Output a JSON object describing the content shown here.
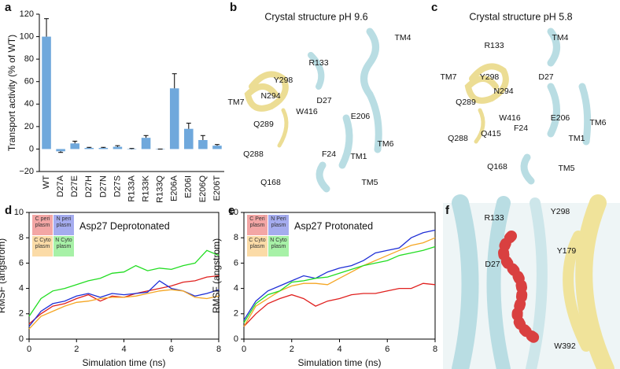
{
  "chart_data": [
    {
      "type": "bar",
      "label": "a",
      "ylabel": "Transport activity (% of WT)",
      "categories": [
        "WT",
        "D27A",
        "D27E",
        "D27H",
        "D27N",
        "D27S",
        "R133A",
        "R133K",
        "R133Q",
        "E206A",
        "E206I",
        "E206Q",
        "E206T"
      ],
      "values": [
        100,
        -2,
        5,
        1,
        1,
        2,
        0,
        10,
        0,
        54,
        18,
        8,
        3
      ],
      "errors": [
        16,
        1,
        2,
        0.5,
        0.5,
        1,
        0.5,
        2,
        0,
        13,
        5,
        4,
        1
      ],
      "color": "#6fa8dc",
      "ylim": [
        -20,
        120
      ],
      "yticks": [
        {
          "value": -20,
          "label": "−20"
        },
        0,
        20,
        40,
        60,
        80,
        100,
        120
      ]
    },
    {
      "type": "line",
      "label": "d",
      "title": "Asp27 Deprotonated",
      "xlabel": "Simulation time (ns)",
      "ylabel": "RMSF (angstrom)",
      "x": [
        0,
        0.5,
        1,
        1.5,
        2,
        2.5,
        3,
        3.5,
        4,
        4.5,
        5,
        5.5,
        6,
        6.5,
        7,
        7.5,
        8
      ],
      "xlim": [
        0,
        8
      ],
      "xticks": [
        0,
        2,
        4,
        6,
        8
      ],
      "ylim": [
        0,
        10
      ],
      "yticks": [
        0,
        2,
        4,
        6,
        8,
        10
      ],
      "series": [
        {
          "name": "C peri plasm",
          "color": "#e0201e",
          "values": [
            1.2,
            2.0,
            2.6,
            2.8,
            3.2,
            3.5,
            3.0,
            3.4,
            3.3,
            3.6,
            3.8,
            4.0,
            4.2,
            4.5,
            4.6,
            4.9,
            5.0
          ]
        },
        {
          "name": "N peri plasm",
          "color": "#1f2fd6",
          "values": [
            1.0,
            2.2,
            2.8,
            3.0,
            3.4,
            3.6,
            3.3,
            3.6,
            3.5,
            3.6,
            3.7,
            4.6,
            4.0,
            3.8,
            3.4,
            3.6,
            3.9
          ]
        },
        {
          "name": "C Cyto plasm",
          "color": "#f5a623",
          "values": [
            0.8,
            1.8,
            2.2,
            2.6,
            2.9,
            3.0,
            3.2,
            3.3,
            3.3,
            3.4,
            3.6,
            3.8,
            3.9,
            3.8,
            3.3,
            3.2,
            3.4
          ]
        },
        {
          "name": "N Cyto plasm",
          "color": "#22dd22",
          "values": [
            1.8,
            3.2,
            3.8,
            4.0,
            4.3,
            4.6,
            4.8,
            5.2,
            5.3,
            5.8,
            5.4,
            5.6,
            5.5,
            5.8,
            6.0,
            7.0,
            6.6
          ]
        }
      ]
    },
    {
      "type": "line",
      "label": "e",
      "title": "Asp27 Protonated",
      "xlabel": "Simulation time (ns)",
      "ylabel": "RMSF (angstrom)",
      "x": [
        0,
        0.5,
        1,
        1.5,
        2,
        2.5,
        3,
        3.5,
        4,
        4.5,
        5,
        5.5,
        6,
        6.5,
        7,
        7.5,
        8
      ],
      "xlim": [
        0,
        8
      ],
      "xticks": [
        0,
        2,
        4,
        6,
        8
      ],
      "ylim": [
        0,
        10
      ],
      "yticks": [
        0,
        2,
        4,
        6,
        8,
        10
      ],
      "series": [
        {
          "name": "C Peri plasm",
          "color": "#e0201e",
          "values": [
            1.0,
            2.0,
            2.8,
            3.2,
            3.5,
            3.2,
            2.6,
            3.0,
            3.2,
            3.5,
            3.6,
            3.6,
            3.8,
            4.0,
            4.0,
            4.4,
            4.3
          ]
        },
        {
          "name": "N Peri plasm",
          "color": "#1f2fd6",
          "values": [
            1.5,
            3.0,
            3.8,
            4.2,
            4.6,
            5.0,
            4.8,
            5.3,
            5.6,
            5.8,
            6.2,
            6.8,
            7.0,
            7.2,
            8.0,
            8.4,
            8.6
          ]
        },
        {
          "name": "C Cyto plasm",
          "color": "#f5a623",
          "values": [
            1.0,
            2.6,
            3.2,
            3.8,
            4.2,
            4.4,
            4.4,
            4.3,
            4.8,
            5.3,
            5.8,
            6.2,
            6.6,
            7.0,
            7.4,
            7.6,
            8.0
          ]
        },
        {
          "name": "N Cyto plasm",
          "color": "#22dd22",
          "values": [
            1.3,
            2.8,
            3.5,
            3.8,
            4.5,
            4.6,
            4.8,
            4.9,
            5.2,
            5.5,
            5.8,
            6.0,
            6.2,
            6.6,
            6.8,
            7.0,
            7.3
          ]
        }
      ]
    }
  ],
  "structures": [
    {
      "label": "b",
      "title": "Crystal structure pH 9.6",
      "residues": [
        "R133",
        "TM4",
        "D27",
        "Y298",
        "TM7",
        "N294",
        "W416",
        "E206",
        "TM6",
        "Q289",
        "F24",
        "TM1",
        "Q288",
        "Q168",
        "TM5"
      ]
    },
    {
      "label": "c",
      "title": "Crystal structure pH 5.8",
      "residues": [
        "R133",
        "TM4",
        "Y298",
        "TM7",
        "D27",
        "N294",
        "E206",
        "Q289",
        "W416",
        "TM6",
        "Q415",
        "F24",
        "TM1",
        "Q288",
        "Q168",
        "TM5"
      ]
    },
    {
      "label": "f",
      "residues": [
        "R133",
        "Y298",
        "Y179",
        "D27",
        "W392"
      ]
    }
  ]
}
